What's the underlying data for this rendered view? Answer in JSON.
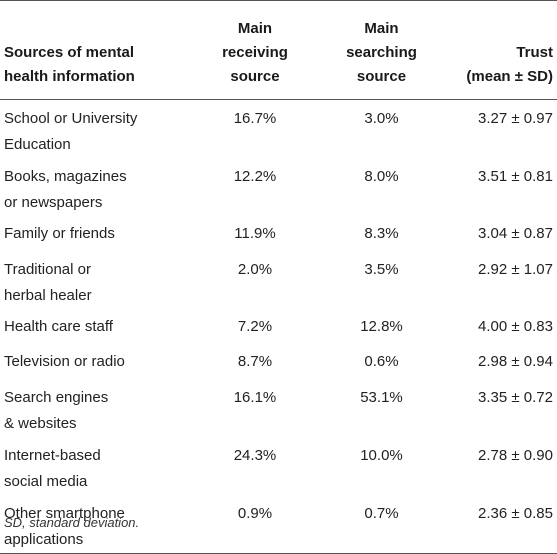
{
  "table": {
    "headers": {
      "source_line1": "Sources of mental",
      "source_line2": "health information",
      "receiving_line1": "Main",
      "receiving_line2": "receiving",
      "receiving_line3": "source",
      "searching_line1": "Main",
      "searching_line2": "searching",
      "searching_line3": "source",
      "trust_line1": "Trust",
      "trust_line2": "(mean ± SD)"
    },
    "rows": [
      {
        "source_line1": "School or University",
        "source_line2": "Education",
        "receiving": "16.7%",
        "searching": "3.0%",
        "trust": "3.27 ± 0.97"
      },
      {
        "source_line1": "Books, magazines",
        "source_line2": "or newspapers",
        "receiving": "12.2%",
        "searching": "8.0%",
        "trust": "3.51 ± 0.81"
      },
      {
        "source_line1": "Family or friends",
        "source_line2": "",
        "receiving": "11.9%",
        "searching": "8.3%",
        "trust": "3.04 ± 0.87"
      },
      {
        "source_line1": "Traditional or",
        "source_line2": "herbal healer",
        "receiving": "2.0%",
        "searching": "3.5%",
        "trust": "2.92 ± 1.07"
      },
      {
        "source_line1": "Health care staff",
        "source_line2": "",
        "receiving": "7.2%",
        "searching": "12.8%",
        "trust": "4.00 ± 0.83"
      },
      {
        "source_line1": "Television or radio",
        "source_line2": "",
        "receiving": "8.7%",
        "searching": "0.6%",
        "trust": "2.98 ± 0.94"
      },
      {
        "source_line1": "Search engines",
        "source_line2": "& websites",
        "receiving": "16.1%",
        "searching": "53.1%",
        "trust": "3.35 ± 0.72"
      },
      {
        "source_line1": "Internet-based",
        "source_line2": "social media",
        "receiving": "24.3%",
        "searching": "10.0%",
        "trust": "2.78 ± 0.90"
      },
      {
        "source_line1": "Other smartphone",
        "source_line2": "applications",
        "receiving": "0.9%",
        "searching": "0.7%",
        "trust": "2.36 ± 0.85"
      }
    ]
  },
  "footnote": "SD, standard deviation."
}
